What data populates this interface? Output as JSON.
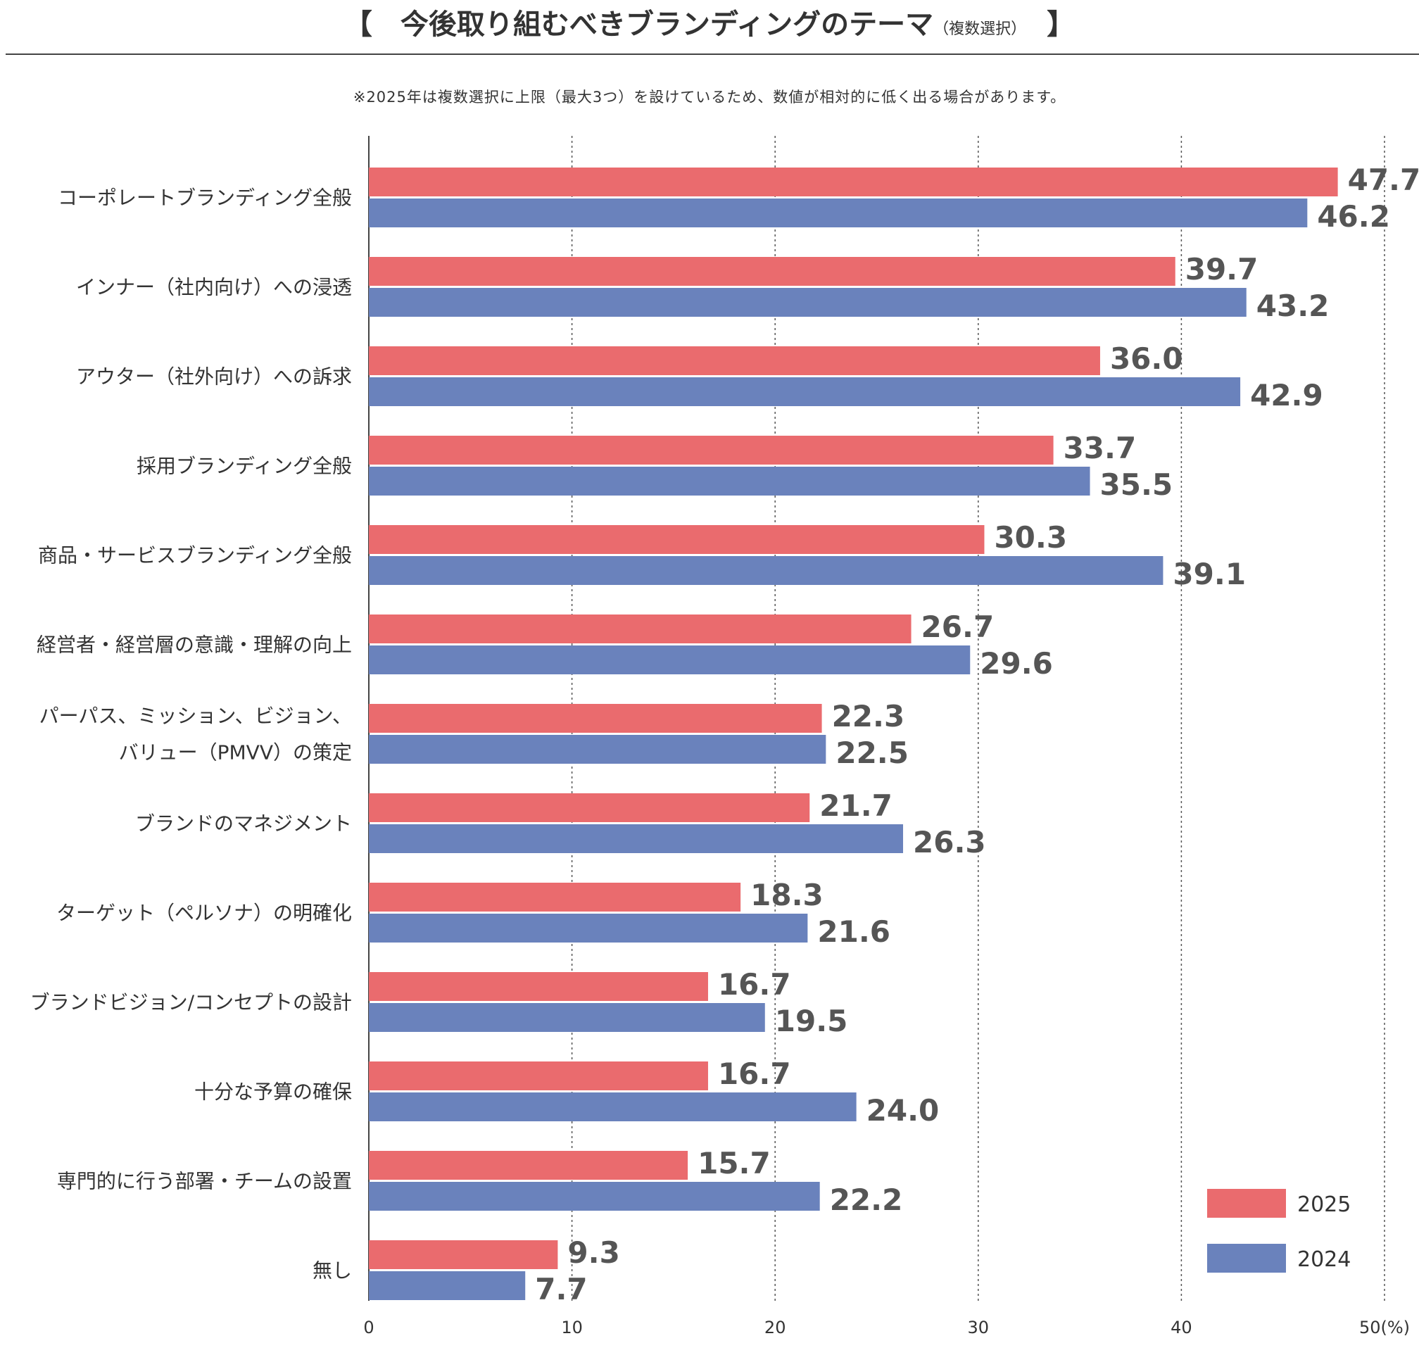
{
  "header": {
    "bracket_open": "【",
    "title": "今後取り組むべきブランディングのテーマ",
    "subtitle": "（複数選択）",
    "bracket_close": "】",
    "note": "※2025年は複数選択に上限（最大3つ）を設けているため、数値が相対的に低く出る場合があります。"
  },
  "colors": {
    "series_2025": "#EA6B6E",
    "series_2024": "#6A82BC",
    "axis": "#444444",
    "grid": "#555555"
  },
  "chart_data": {
    "type": "bar",
    "orientation": "horizontal",
    "title": "今後取り組むべきブランディングのテーマ（複数選択）",
    "categories": [
      [
        "コーポレートブランディング全般"
      ],
      [
        "インナー（社内向け）への浸透"
      ],
      [
        "アウター（社外向け）への訴求"
      ],
      [
        "採用ブランディング全般"
      ],
      [
        "商品・サービスブランディング全般"
      ],
      [
        "経営者・経営層の意識・理解の向上"
      ],
      [
        "パーパス、ミッション、ビジョン、",
        "バリュー（PMVV）の策定"
      ],
      [
        "ブランドのマネジメント"
      ],
      [
        "ターゲット（ペルソナ）の明確化"
      ],
      [
        "ブランドビジョン/コンセプトの設計"
      ],
      [
        "十分な予算の確保"
      ],
      [
        "専門的に行う部署・チームの設置"
      ],
      [
        "無し"
      ]
    ],
    "series": [
      {
        "name": "2025",
        "values": [
          47.7,
          39.7,
          36.0,
          33.7,
          30.3,
          26.7,
          22.3,
          21.7,
          18.3,
          16.7,
          16.7,
          15.7,
          9.3
        ],
        "labels": [
          "47.7",
          "39.7",
          "36.0",
          "33.7",
          "30.3",
          "26.7",
          "22.3",
          "21.7",
          "18.3",
          "16.7",
          "16.7",
          "15.7",
          "9.3"
        ]
      },
      {
        "name": "2024",
        "values": [
          46.2,
          43.2,
          42.9,
          35.5,
          39.1,
          29.6,
          22.5,
          26.3,
          21.6,
          19.5,
          24.0,
          22.2,
          7.7
        ],
        "labels": [
          "46.2",
          "43.2",
          "42.9",
          "35.5",
          "39.1",
          "29.6",
          "22.5",
          "26.3",
          "21.6",
          "19.5",
          "24.0",
          "22.2",
          "7.7"
        ]
      }
    ],
    "xlim": [
      0,
      50
    ],
    "xticks": [
      0,
      10,
      20,
      30,
      40,
      50
    ],
    "xtick_labels": [
      "0",
      "10",
      "20",
      "30",
      "40",
      "50(%)"
    ],
    "grid": "vertical dotted",
    "legend_position": "bottom-right"
  }
}
